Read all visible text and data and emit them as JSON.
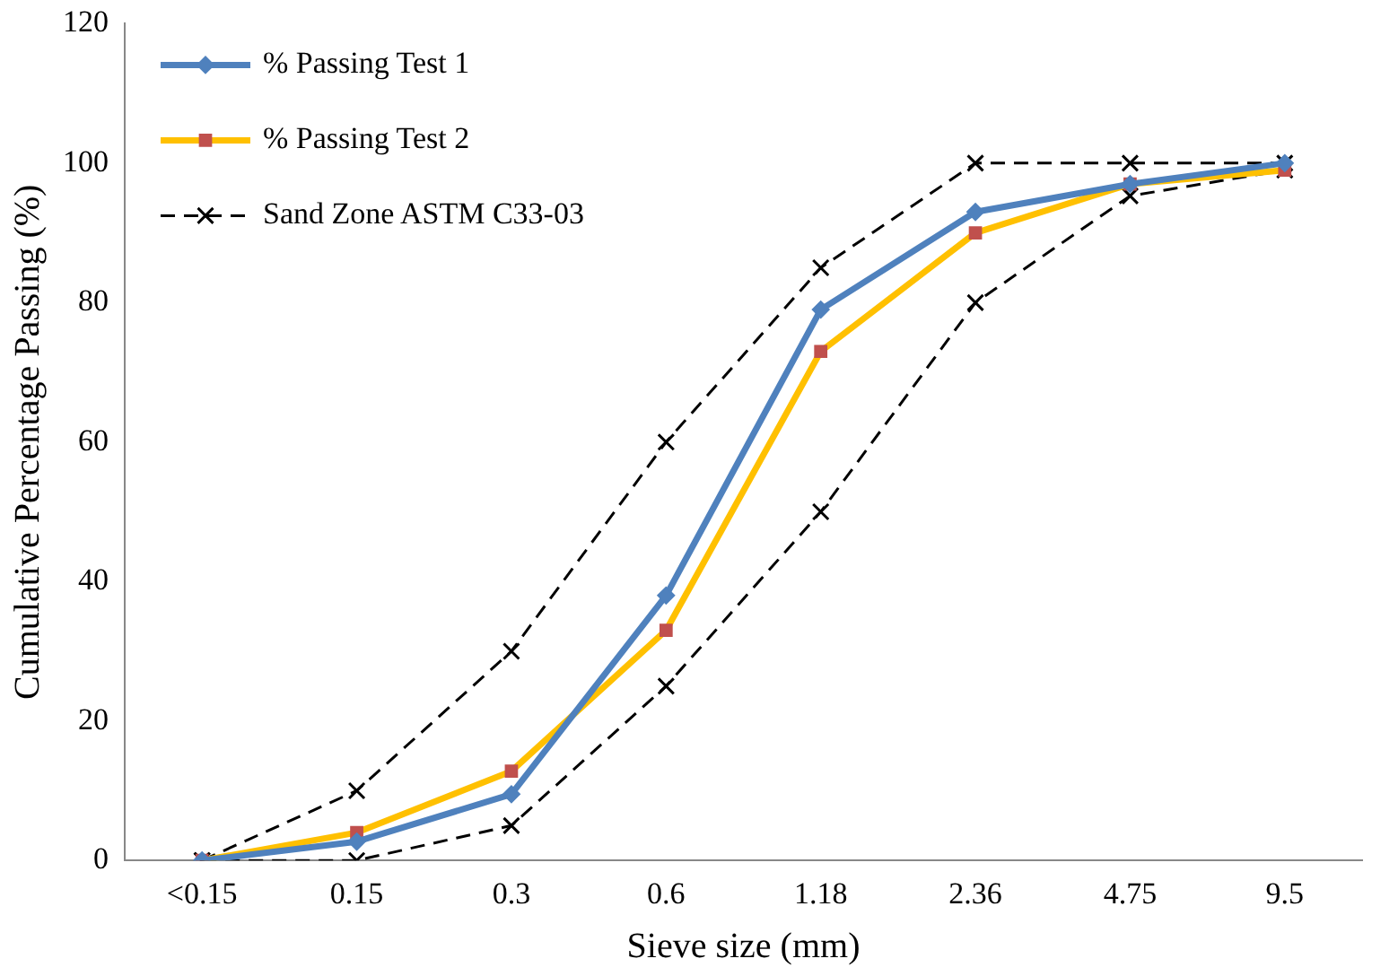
{
  "chart_data": {
    "type": "line",
    "xlabel": "Sieve size (mm)",
    "ylabel": "Cumulative Percentage Passing (%)",
    "categories": [
      "<0.15",
      "0.15",
      "0.3",
      "0.6",
      "1.18",
      "2.36",
      "4.75",
      "9.5"
    ],
    "series": [
      {
        "name": "% Passing Test 1",
        "color": "#4f81bd",
        "marker": "diamond",
        "line_style": "solid",
        "values": [
          0,
          2.7,
          9.5,
          38,
          79,
          93,
          97,
          100
        ]
      },
      {
        "name": "% Passing Test 2",
        "color": "#ffc000",
        "marker": "square",
        "colors": [
          "#c0504d",
          "#c0504d",
          "#c0504d",
          "#c0504d",
          "#c0504d",
          "#c0504d",
          "#c0504d",
          "#c0504d"
        ],
        "line_style": "solid",
        "values": [
          0,
          4,
          12.8,
          33,
          73,
          90,
          97,
          99
        ]
      },
      {
        "name": "Sand Zone ASTM C33-03",
        "color": "#000000",
        "marker": "cross",
        "line_style": "dashed",
        "values": [
          0,
          10,
          30,
          60,
          85,
          100,
          100,
          100
        ]
      },
      {
        "color": "#000000",
        "marker": "cross",
        "line_style": "dashed",
        "values": [
          0,
          0,
          5,
          25,
          50,
          80,
          95.3,
          99
        ]
      }
    ],
    "ylim": [
      0,
      120
    ],
    "yticks": [
      0,
      20,
      40,
      60,
      80,
      100,
      120
    ],
    "grid": false,
    "legend": "top left"
  }
}
